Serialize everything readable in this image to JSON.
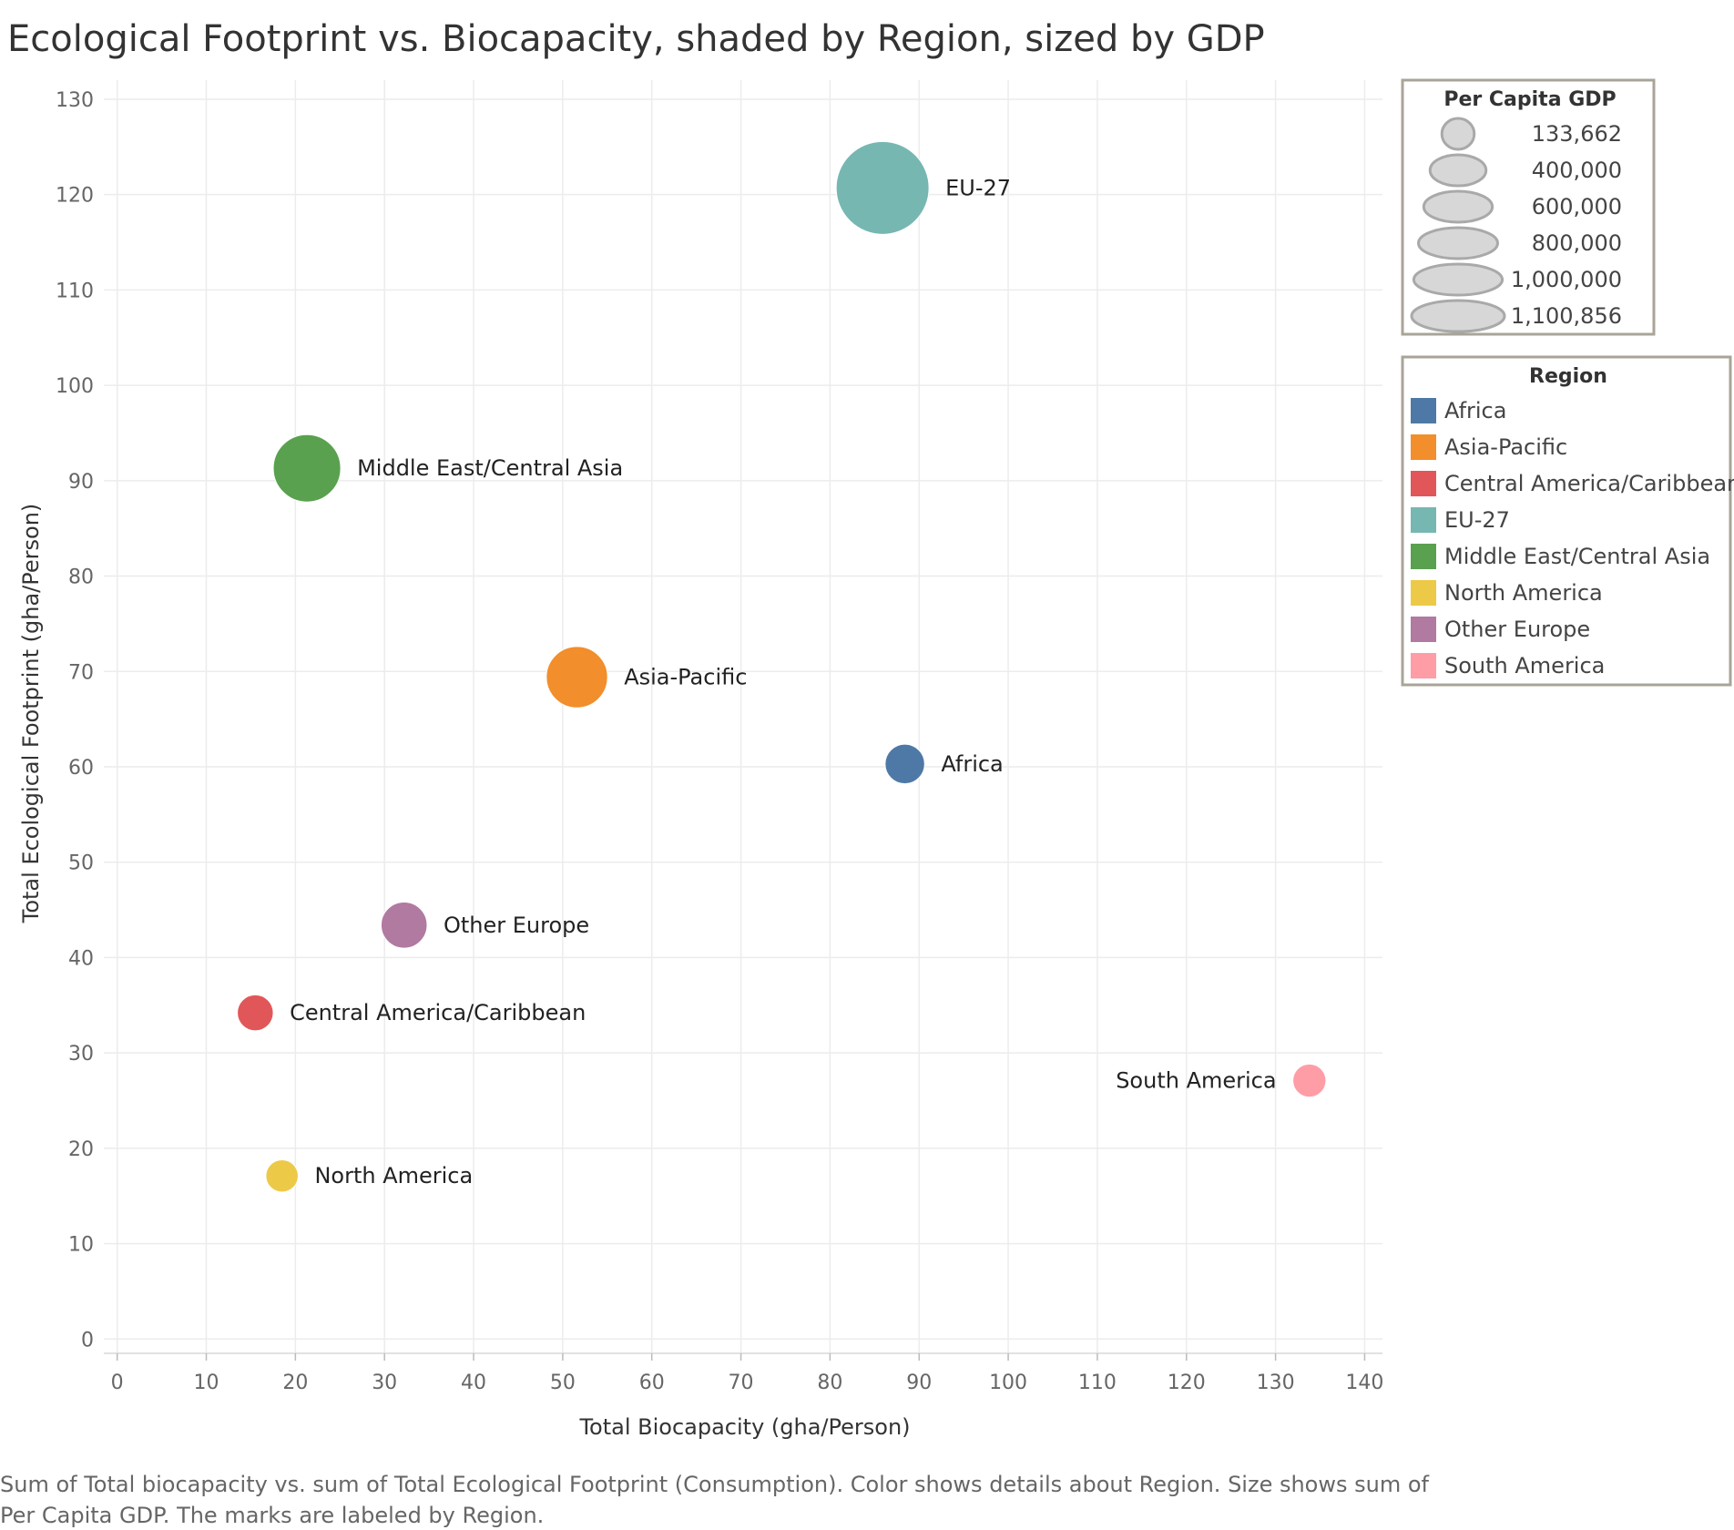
{
  "chart_data": {
    "type": "scatter",
    "title": "Ecological Footprint vs. Biocapacity, shaded by Region, sized by GDP",
    "xlabel": "Total Biocapacity (gha/Person)",
    "ylabel": "Total Ecological Footprint (gha/Person)",
    "xlim": [
      -1.5,
      142
    ],
    "ylim": [
      -1.5,
      132
    ],
    "x_ticks": [
      0,
      10,
      20,
      30,
      40,
      50,
      60,
      70,
      80,
      90,
      100,
      110,
      120,
      130,
      140
    ],
    "y_ticks": [
      0,
      10,
      20,
      30,
      40,
      50,
      60,
      70,
      80,
      90,
      100,
      110,
      120,
      130
    ],
    "grid": true,
    "size_legend": {
      "title": "Per Capita GDP",
      "entries": [
        {
          "label": "133,662",
          "value": 133662
        },
        {
          "label": "400,000",
          "value": 400000
        },
        {
          "label": "600,000",
          "value": 600000
        },
        {
          "label": "800,000",
          "value": 800000
        },
        {
          "label": "1,000,000",
          "value": 1000000
        },
        {
          "label": "1,100,856",
          "value": 1100856
        }
      ]
    },
    "color_legend": {
      "title": "Region",
      "entries": [
        {
          "label": "Africa",
          "color": "#4e79a7"
        },
        {
          "label": "Asia-Pacific",
          "color": "#f28e2b"
        },
        {
          "label": "Central America/Caribbean",
          "color": "#e15759"
        },
        {
          "label": "EU-27",
          "color": "#76b7b2"
        },
        {
          "label": "Middle East/Central Asia",
          "color": "#59a14f"
        },
        {
          "label": "North America",
          "color": "#edc948"
        },
        {
          "label": "Other Europe",
          "color": "#b07aa1"
        },
        {
          "label": "South America",
          "color": "#ff9da7"
        }
      ]
    },
    "points": [
      {
        "label": "EU-27",
        "x": 85.9,
        "y": 120.7,
        "size": 1100856,
        "color": "#76b7b2",
        "label_side": "right"
      },
      {
        "label": "Middle East/Central Asia",
        "x": 21.3,
        "y": 91.3,
        "size": 580000,
        "color": "#59a14f",
        "label_side": "right"
      },
      {
        "label": "Asia-Pacific",
        "x": 51.6,
        "y": 69.4,
        "size": 480000,
        "color": "#f28e2b",
        "label_side": "right"
      },
      {
        "label": "Africa",
        "x": 88.4,
        "y": 60.3,
        "size": 200000,
        "color": "#4e79a7",
        "label_side": "right"
      },
      {
        "label": "Other Europe",
        "x": 32.2,
        "y": 43.4,
        "size": 270000,
        "color": "#b07aa1",
        "label_side": "right"
      },
      {
        "label": "Central America/Caribbean",
        "x": 15.5,
        "y": 34.2,
        "size": 165000,
        "color": "#e15759",
        "label_side": "right"
      },
      {
        "label": "South America",
        "x": 133.8,
        "y": 27.1,
        "size": 140000,
        "color": "#ff9da7",
        "label_side": "left"
      },
      {
        "label": "North America",
        "x": 18.5,
        "y": 17.1,
        "size": 133662,
        "color": "#edc948",
        "label_side": "right"
      }
    ]
  },
  "footnote_lines": [
    "Sum of Total biocapacity vs. sum of Total Ecological Footprint (Consumption).  Color shows details about Region.  Size shows sum of",
    "Per Capita GDP.  The marks are labeled by Region."
  ]
}
